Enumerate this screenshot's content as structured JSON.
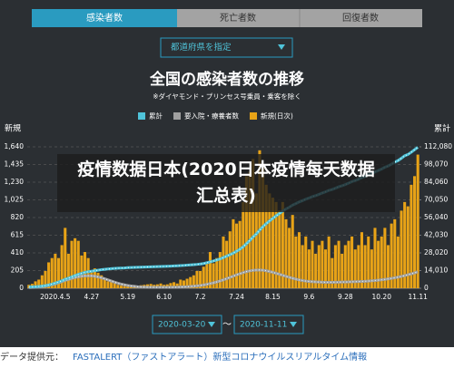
{
  "tabs": [
    "感染者数",
    "死亡者数",
    "回復者数"
  ],
  "dropdown": "都道府県を指定",
  "chart_data": {
    "type": "bar",
    "title": "全国の感染者数の推移",
    "subtitle": "※ダイヤモンド・プリンセス号乗員・乗客を除く",
    "ylabel": "新規",
    "y2label": "累計",
    "categories": [
      null,
      null,
      null,
      null,
      null,
      null,
      null,
      null,
      "2020.4.5",
      null,
      null,
      null,
      null,
      null,
      null,
      null,
      null,
      null,
      null,
      "4.27",
      null,
      null,
      null,
      null,
      null,
      null,
      null,
      null,
      null,
      null,
      "5.19",
      null,
      null,
      null,
      null,
      null,
      null,
      null,
      null,
      null,
      null,
      "6.10",
      null,
      null,
      null,
      null,
      null,
      null,
      null,
      null,
      null,
      null,
      "7.2",
      null,
      null,
      null,
      null,
      null,
      null,
      null,
      null,
      null,
      null,
      "7.24",
      null,
      null,
      null,
      null,
      null,
      null,
      null,
      null,
      null,
      null,
      "8.15",
      null,
      null,
      null,
      null,
      null,
      null,
      null,
      null,
      null,
      null,
      "9.6",
      null,
      null,
      null,
      null,
      null,
      null,
      null,
      null,
      null,
      null,
      "9.28",
      null,
      null,
      null,
      null,
      null,
      null,
      null,
      null,
      null,
      null,
      "10.20",
      null,
      null,
      null,
      null,
      null,
      null,
      null,
      null,
      null,
      null,
      "11.11"
    ],
    "series": [
      {
        "name": "累計",
        "type": "line",
        "axis": "y2",
        "color": "#4fc3d9",
        "values": [
          950,
          1050,
          1200,
          1400,
          1700,
          2100,
          2600,
          3300,
          4100,
          4900,
          5900,
          7100,
          8000,
          9000,
          10000,
          11000,
          11800,
          12600,
          13100,
          13500,
          13900,
          14300,
          14700,
          15000,
          15300,
          15500,
          15700,
          15900,
          16000,
          16100,
          16300,
          16400,
          16500,
          16600,
          16700,
          16800,
          16900,
          17000,
          17100,
          17150,
          17200,
          17300,
          17400,
          17500,
          17650,
          17800,
          17950,
          18100,
          18300,
          18500,
          18700,
          18900,
          19200,
          19600,
          20200,
          20900,
          21600,
          22400,
          23200,
          24300,
          25400,
          26600,
          27800,
          29300,
          30900,
          32800,
          35300,
          37800,
          40600,
          43000,
          46000,
          48800,
          51200,
          53300,
          55400,
          57400,
          59200,
          61200,
          62800,
          64200,
          65900,
          67100,
          68400,
          69400,
          70600,
          71500,
          72600,
          73400,
          74400,
          75500,
          76400,
          77600,
          78300,
          79300,
          80400,
          81200,
          82200,
          83300,
          84500,
          85400,
          86400,
          87700,
          88700,
          89900,
          90800,
          92200,
          93300,
          94500,
          95900,
          96900,
          98400,
          100000,
          101200,
          103000,
          105000,
          106000,
          107800,
          109800,
          111800
        ]
      },
      {
        "name": "要入院・療養者数",
        "type": "line",
        "axis": "y2",
        "color": "#a0a0a0",
        "values": [
          500,
          600,
          700,
          900,
          1200,
          1600,
          2100,
          2800,
          3500,
          4300,
          5200,
          6200,
          7000,
          7800,
          8500,
          9100,
          9500,
          9800,
          9900,
          9800,
          9500,
          9000,
          8300,
          7500,
          6600,
          5700,
          4800,
          4000,
          3300,
          2700,
          2200,
          1800,
          1500,
          1200,
          1000,
          900,
          800,
          750,
          700,
          700,
          700,
          700,
          720,
          750,
          800,
          850,
          950,
          1050,
          1200,
          1400,
          1600,
          1900,
          2200,
          2600,
          3100,
          3700,
          4300,
          5000,
          5800,
          6700,
          7600,
          8600,
          9600,
          10600,
          11500,
          12400,
          13200,
          13800,
          14200,
          14400,
          14500,
          14300,
          13900,
          13300,
          12600,
          11900,
          11100,
          10300,
          9500,
          8700,
          7900,
          7200,
          6600,
          6100,
          5700,
          5400,
          5200,
          5000,
          4900,
          4800,
          4700,
          4700,
          4700,
          4800,
          4800,
          4900,
          4900,
          5000,
          5100,
          5200,
          5300,
          5400,
          5500,
          5700,
          5900,
          6100,
          6400,
          6700,
          7000,
          7400,
          7800,
          8300,
          8800,
          9400,
          10000,
          10700,
          11400,
          12200,
          13000
        ]
      },
      {
        "name": "新規(日次)",
        "type": "bar",
        "color": "#e8a317",
        "values": [
          40,
          50,
          80,
          100,
          150,
          200,
          300,
          350,
          400,
          350,
          500,
          700,
          400,
          550,
          580,
          550,
          380,
          420,
          350,
          200,
          230,
          180,
          150,
          100,
          80,
          90,
          60,
          40,
          30,
          25,
          30,
          20,
          25,
          30,
          35,
          40,
          45,
          50,
          40,
          45,
          55,
          40,
          45,
          60,
          70,
          55,
          100,
          90,
          110,
          130,
          150,
          200,
          200,
          250,
          300,
          420,
          290,
          350,
          420,
          600,
          550,
          660,
          800,
          750,
          780,
          1000,
          1300,
          1350,
          1500,
          1100,
          1600,
          1400,
          1200,
          1100,
          1050,
          1000,
          900,
          1000,
          800,
          700,
          850,
          600,
          650,
          500,
          600,
          450,
          550,
          400,
          500,
          550,
          450,
          600,
          350,
          500,
          550,
          400,
          500,
          550,
          600,
          450,
          500,
          650,
          500,
          600,
          450,
          700,
          550,
          600,
          700,
          500,
          750,
          800,
          600,
          900,
          1000,
          950,
          1200,
          1300,
          1550
        ]
      }
    ],
    "ylim": [
      0,
      1640
    ],
    "yticks": [
      0,
      205,
      410,
      615,
      820,
      {
        "value": 1025,
        "label": "1,025"
      },
      {
        "value": 1230,
        "label": "1,230"
      },
      {
        "value": 1435,
        "label": "1,435"
      },
      {
        "value": 1640,
        "label": "1,640"
      }
    ],
    "y2lim": [
      0,
      112080
    ],
    "y2ticks": [
      0,
      {
        "value": 14010,
        "label": "14,010"
      },
      {
        "value": 28020,
        "label": "28,020"
      },
      {
        "value": 42030,
        "label": "42,030"
      },
      {
        "value": 56040,
        "label": "56,040"
      },
      {
        "value": 70050,
        "label": "70,050"
      },
      {
        "value": 84060,
        "label": "84,060"
      },
      {
        "value": 98070,
        "label": "98,070"
      },
      {
        "value": 112080,
        "label": "112,080"
      }
    ],
    "grid": true
  },
  "date_from": "2020-03-20",
  "date_sep": "〜",
  "date_to": "2020-11-11",
  "overlay": "疫情数据日本(2020日本疫情每天数据汇总表)",
  "footer": {
    "label": "データ提供元：",
    "link": "FASTALERT（ファストアラート）新型コロナウイルスリアルタイム情報"
  }
}
